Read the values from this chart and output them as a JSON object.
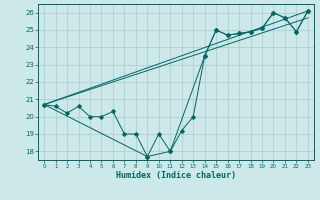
{
  "xlabel": "Humidex (Indice chaleur)",
  "xlim": [
    -0.5,
    23.5
  ],
  "ylim": [
    17.5,
    26.5
  ],
  "yticks": [
    18,
    19,
    20,
    21,
    22,
    23,
    24,
    25,
    26
  ],
  "xticks": [
    0,
    1,
    2,
    3,
    4,
    5,
    6,
    7,
    8,
    9,
    10,
    11,
    12,
    13,
    14,
    15,
    16,
    17,
    18,
    19,
    20,
    21,
    22,
    23
  ],
  "bg_color": "#cce8e8",
  "grid_color": "#aacccc",
  "line_color": "#006666",
  "line1_x": [
    0,
    1,
    2,
    3,
    4,
    5,
    6,
    7,
    8,
    9,
    10,
    11,
    12,
    13,
    14,
    15,
    16,
    17,
    18,
    19,
    20,
    21,
    22,
    23
  ],
  "line1_y": [
    20.7,
    20.6,
    20.2,
    20.6,
    20.0,
    20.0,
    20.3,
    19.0,
    19.0,
    17.7,
    19.0,
    18.0,
    19.2,
    20.0,
    23.5,
    25.0,
    24.7,
    24.8,
    24.9,
    25.1,
    26.0,
    25.7,
    24.9,
    26.1
  ],
  "line2_x": [
    0,
    9,
    11,
    14,
    15,
    16,
    17,
    18,
    19,
    20,
    21,
    22,
    23
  ],
  "line2_y": [
    20.7,
    17.7,
    18.0,
    23.5,
    25.0,
    24.7,
    24.8,
    24.9,
    25.1,
    26.0,
    25.7,
    24.9,
    26.1
  ],
  "line3_x": [
    0,
    23
  ],
  "line3_y": [
    20.7,
    26.1
  ],
  "line4_x": [
    0,
    23
  ],
  "line4_y": [
    20.7,
    25.7
  ]
}
